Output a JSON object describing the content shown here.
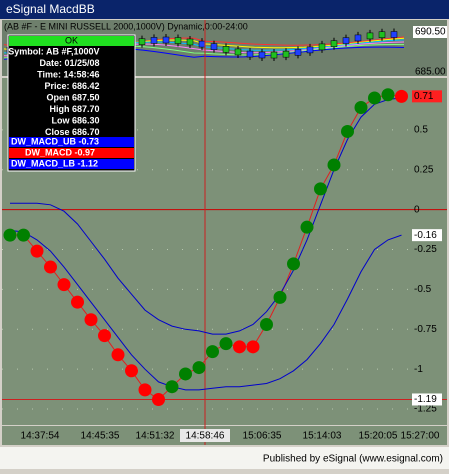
{
  "window": {
    "title": "eSignal MacdBB"
  },
  "price_pane": {
    "title": "(AB #F - E MINI RUSSELL 2000,1000V) Dynamic,0:00-24:00",
    "labels": [
      "690.50",
      "685.00"
    ]
  },
  "data_window": {
    "header": "OK",
    "rows": [
      "Symbol: AB #F,1000V",
      "Date: 01/25/08",
      "Time: 14:58:46",
      "Price: 686.42",
      "Open 687.50",
      "High 687.70",
      "Low 686.30",
      "Close 686.70"
    ],
    "studies": [
      {
        "text": "DW_MACD_UB -0.73",
        "color": "#0000ff"
      },
      {
        "text": "DW_MACD -0.97",
        "color": "#ff0000"
      },
      {
        "text": "DW_MACD_LB -1.12",
        "color": "#0000ff"
      }
    ]
  },
  "chart_data": {
    "type": "dots",
    "ylim": [
      -1.35,
      0.825
    ],
    "yticks": [
      0.5,
      0.25,
      0,
      -0.25,
      -0.5,
      -0.75,
      -1,
      -1.25
    ],
    "grid": true,
    "zero_line_color": "#cc0000",
    "time_labels": [
      "14:37:54",
      "14:45:35",
      "14:51:32",
      "14:58:46",
      "15:06:35",
      "15:14:03",
      "15:20:05",
      "15:27:00"
    ],
    "crosshair": {
      "time_index": 3,
      "value": -1.19
    },
    "series": [
      {
        "name": "DW_MACD",
        "color": "#e02020",
        "values": [
          -0.16,
          -0.16,
          -0.26,
          -0.36,
          -0.47,
          -0.58,
          -0.69,
          -0.79,
          -0.91,
          -1.01,
          -1.13,
          -1.19,
          -1.11,
          -1.03,
          -0.99,
          -0.89,
          -0.84,
          -0.86,
          -0.86,
          -0.72,
          -0.55,
          -0.34,
          -0.11,
          0.13,
          0.28,
          0.49,
          0.64,
          0.7,
          0.72,
          0.71
        ],
        "point_colors": [
          "#008000",
          "#008000",
          "#ff0000",
          "#ff0000",
          "#ff0000",
          "#ff0000",
          "#ff0000",
          "#ff0000",
          "#ff0000",
          "#ff0000",
          "#ff0000",
          "#ff0000",
          "#008000",
          "#008000",
          "#008000",
          "#008000",
          "#008000",
          "#ff0000",
          "#ff0000",
          "#008000",
          "#008000",
          "#008000",
          "#008000",
          "#008000",
          "#008000",
          "#008000",
          "#008000",
          "#008000",
          "#008000",
          "#ff0000"
        ]
      },
      {
        "name": "DW_MACD_UB",
        "color": "#0000cc",
        "values": [
          0.04,
          0.04,
          0.04,
          0.03,
          -0.01,
          -0.09,
          -0.2,
          -0.31,
          -0.43,
          -0.53,
          -0.63,
          -0.69,
          -0.73,
          -0.75,
          -0.76,
          -0.78,
          -0.78,
          -0.76,
          -0.72,
          -0.64,
          -0.53,
          -0.38,
          -0.19,
          0.03,
          0.25,
          0.44,
          0.58,
          0.66,
          0.69,
          0.7
        ]
      },
      {
        "name": "DW_MACD_LB",
        "color": "#0000cc",
        "values": [
          -0.13,
          -0.14,
          -0.19,
          -0.26,
          -0.36,
          -0.47,
          -0.58,
          -0.69,
          -0.8,
          -0.91,
          -1,
          -1.08,
          -1.11,
          -1.13,
          -1.13,
          -1.12,
          -1.11,
          -1.11,
          -1.1,
          -1.09,
          -1.06,
          -1.01,
          -0.94,
          -0.84,
          -0.72,
          -0.56,
          -0.39,
          -0.25,
          -0.19,
          -0.16
        ]
      }
    ]
  },
  "footer": "Published by eSignal (www.esignal.com)"
}
